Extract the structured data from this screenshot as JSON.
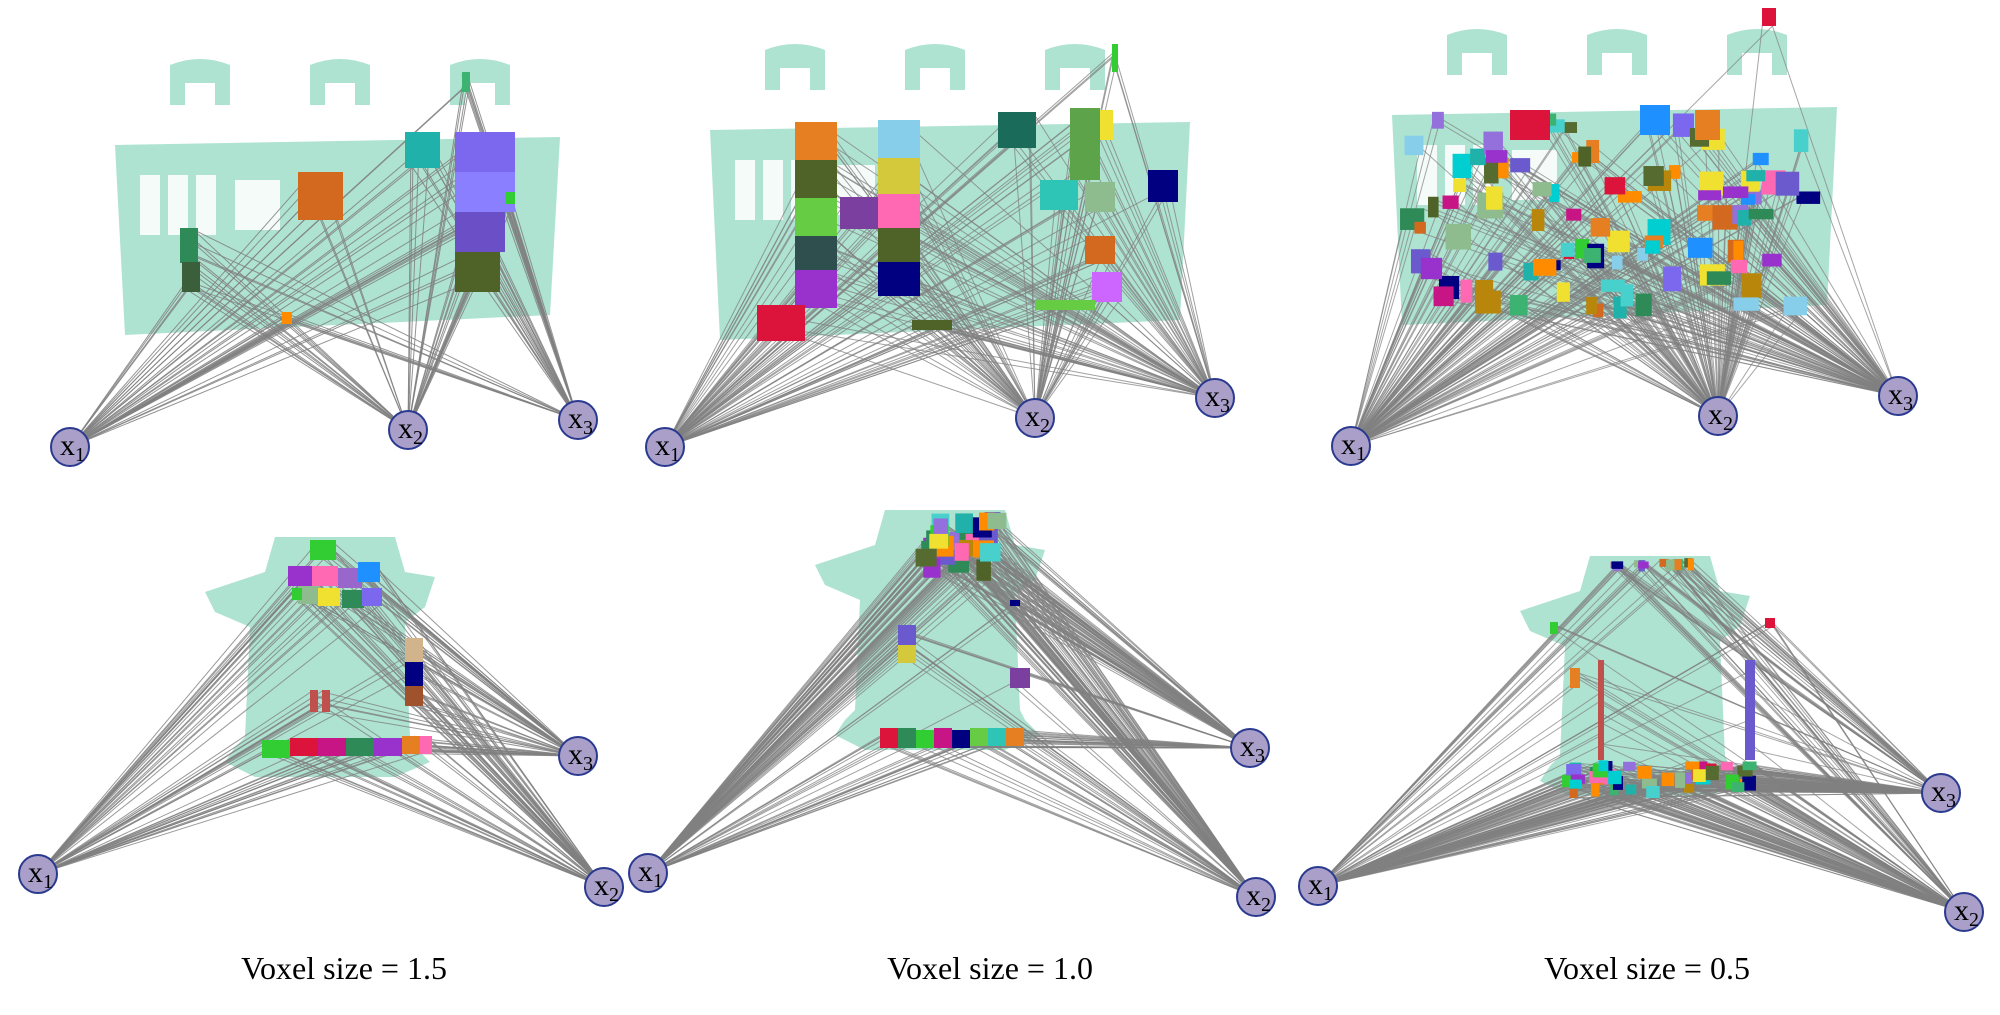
{
  "colors": {
    "cloud": "#aee3d1",
    "edge": "#808080",
    "node_fill": "#a99fc9",
    "node_stroke": "#2a3a8f"
  },
  "node_labels": {
    "x1": {
      "main": "x",
      "sub": "1"
    },
    "x2": {
      "main": "x",
      "sub": "2"
    },
    "x3": {
      "main": "x",
      "sub": "3"
    }
  },
  "captions": [
    {
      "text": "Voxel size = 1.5"
    },
    {
      "text": "Voxel size = 1.0"
    },
    {
      "text": "Voxel size = 0.5"
    }
  ]
}
